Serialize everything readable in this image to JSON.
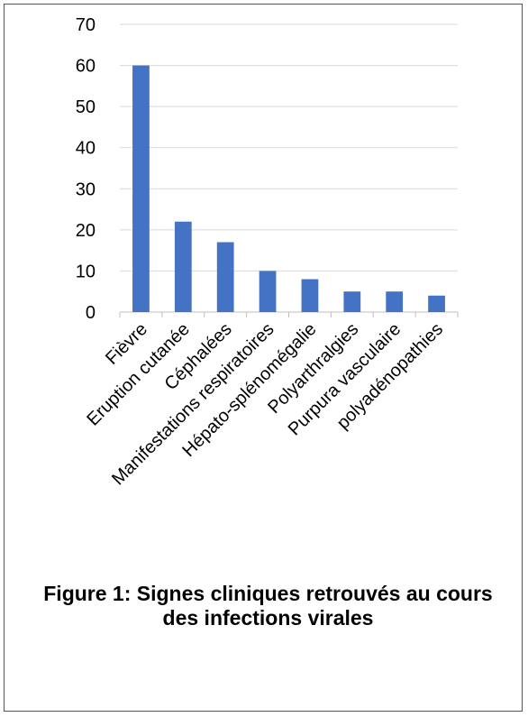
{
  "chart_data": {
    "type": "bar",
    "categories": [
      "Fièvre",
      "Eruption cutanée",
      "Céphalées",
      "Manifestations respiratoires",
      "Hépato-splénomégalie",
      "Polyarthralgies",
      "Purpura vasculaire",
      "polyadénopathies"
    ],
    "values": [
      60,
      22,
      17,
      10,
      8,
      5,
      5,
      4
    ],
    "yticks": [
      0,
      10,
      20,
      30,
      40,
      50,
      60,
      70
    ],
    "ylim": [
      0,
      70
    ],
    "grid": true,
    "legend": "none",
    "bar_color": "#4472C4"
  },
  "caption": "Figure 1: Signes cliniques retrouvés au cours des infections virales"
}
